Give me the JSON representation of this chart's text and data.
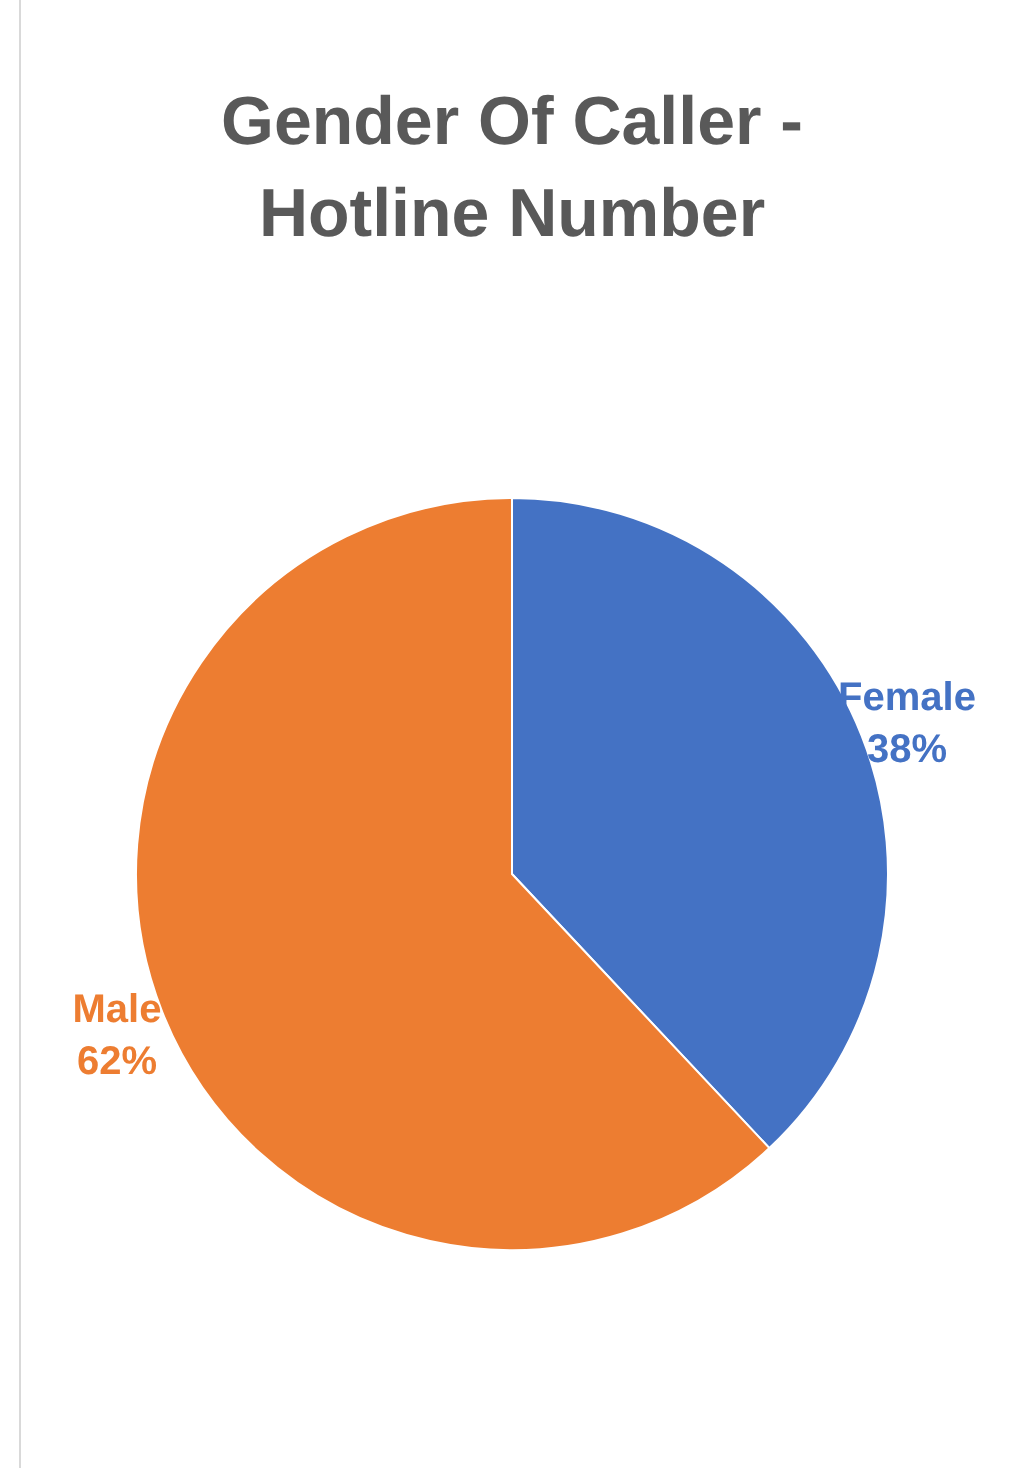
{
  "chart_data": {
    "type": "pie",
    "title": "Gender Of Caller - Hotline Number",
    "categories": [
      "Female",
      "Male"
    ],
    "values": [
      38,
      62
    ],
    "colors": [
      "#4472c4",
      "#ed7d31"
    ],
    "value_labels": [
      "38%",
      "62%"
    ]
  }
}
